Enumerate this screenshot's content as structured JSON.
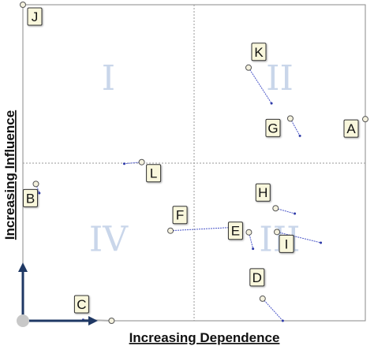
{
  "chart_data": {
    "type": "scatter",
    "xlabel": "Increasing Dependence",
    "ylabel": "Increasing Influence",
    "xlim": [
      0,
      1
    ],
    "ylim": [
      0,
      1
    ],
    "quadrants": [
      {
        "label": "I",
        "x": 0.25,
        "y": 0.77
      },
      {
        "label": "II",
        "x": 0.75,
        "y": 0.77
      },
      {
        "label": "III",
        "x": 0.75,
        "y": 0.26
      },
      {
        "label": "IV",
        "x": 0.25,
        "y": 0.26
      }
    ],
    "points": [
      {
        "label": "A",
        "x": 1.0,
        "y": 0.638,
        "to_x": null,
        "to_y": null
      },
      {
        "label": "B",
        "x": 0.038,
        "y": 0.433,
        "to_x": 0.048,
        "to_y": 0.404
      },
      {
        "label": "C",
        "x": 0.259,
        "y": 0.0,
        "to_x": 0.176,
        "to_y": 0.003
      },
      {
        "label": "D",
        "x": 0.7,
        "y": 0.07,
        "to_x": 0.759,
        "to_y": 0.0
      },
      {
        "label": "E",
        "x": 0.66,
        "y": 0.28,
        "to_x": 0.672,
        "to_y": 0.228
      },
      {
        "label": "F",
        "x": 0.431,
        "y": 0.285,
        "to_x": 0.619,
        "to_y": 0.296
      },
      {
        "label": "G",
        "x": 0.781,
        "y": 0.64,
        "to_x": 0.809,
        "to_y": 0.585
      },
      {
        "label": "H",
        "x": 0.738,
        "y": 0.356,
        "to_x": 0.794,
        "to_y": 0.339
      },
      {
        "label": "I",
        "x": 0.742,
        "y": 0.281,
        "to_x": 0.87,
        "to_y": 0.247
      },
      {
        "label": "J",
        "x": 0.0,
        "y": 1.0,
        "to_x": null,
        "to_y": null
      },
      {
        "label": "K",
        "x": 0.659,
        "y": 0.801,
        "to_x": 0.726,
        "to_y": 0.688
      },
      {
        "label": "L",
        "x": 0.347,
        "y": 0.502,
        "to_x": 0.296,
        "to_y": 0.497
      }
    ]
  }
}
